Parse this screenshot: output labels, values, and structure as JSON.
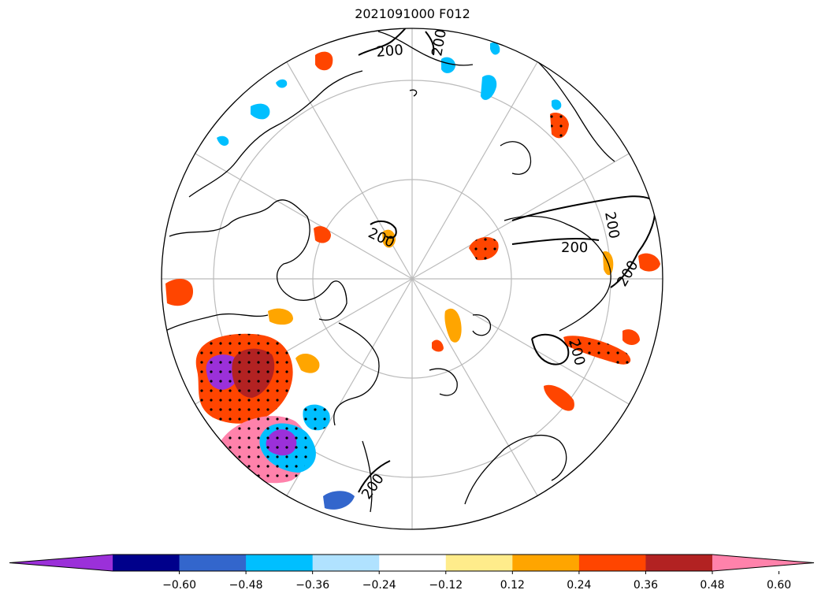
{
  "title": "2021091000 F012",
  "contour_label": "200",
  "colorbar": {
    "colors": [
      "#9b30d9",
      "#00008b",
      "#3366cc",
      "#00bfff",
      "#b0e2ff",
      "#ffffff",
      "#ffec8b",
      "#ffa500",
      "#ff4500",
      "#b22222",
      "#ff82ab"
    ],
    "tick_labels": [
      "−0.60",
      "−0.48",
      "−0.36",
      "−0.24",
      "−0.12",
      "0.12",
      "0.24",
      "0.36",
      "0.48",
      "0.60"
    ],
    "extend": "both"
  },
  "map": {
    "projection": "north-polar-stereographic",
    "graticule": true,
    "stippling": true
  }
}
